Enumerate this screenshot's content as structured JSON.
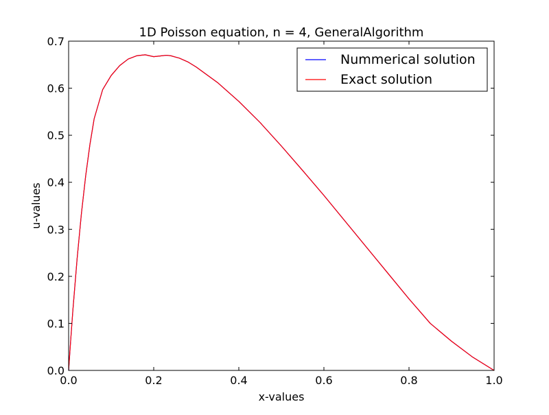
{
  "chart_data": {
    "type": "line",
    "title": "1D Poisson equation, n = 4, GeneralAlgorithm",
    "xlabel": "x-values",
    "ylabel": "u-values",
    "xlim": [
      0.0,
      1.0
    ],
    "ylim": [
      0.0,
      0.7
    ],
    "x_ticks": [
      "0.0",
      "0.2",
      "0.4",
      "0.6",
      "0.8",
      "1.0"
    ],
    "y_ticks": [
      "0.0",
      "0.1",
      "0.2",
      "0.3",
      "0.4",
      "0.5",
      "0.6",
      "0.7"
    ],
    "grid": false,
    "legend_position": "top-right",
    "series": [
      {
        "name": "Nummerical solution",
        "color": "#0000ff",
        "x": [
          0,
          0.005,
          0.01,
          0.02,
          0.03,
          0.04,
          0.05,
          0.06,
          0.08,
          0.1,
          0.12,
          0.14,
          0.16,
          0.18,
          0.2,
          0.22,
          0.23,
          0.24,
          0.26,
          0.28,
          0.3,
          0.35,
          0.4,
          0.45,
          0.5,
          0.55,
          0.6,
          0.65,
          0.7,
          0.75,
          0.8,
          0.85,
          0.9,
          0.95,
          1.0
        ],
        "y": [
          0,
          0.066,
          0.128,
          0.238,
          0.333,
          0.413,
          0.48,
          0.535,
          0.597,
          0.627,
          0.648,
          0.662,
          0.669,
          0.671,
          0.667,
          0.669,
          0.67,
          0.669,
          0.664,
          0.656,
          0.645,
          0.612,
          0.572,
          0.527,
          0.477,
          0.425,
          0.372,
          0.317,
          0.262,
          0.207,
          0.152,
          0.1,
          0.062,
          0.028,
          0.0
        ]
      },
      {
        "name": "Exact solution",
        "color": "#ff0000",
        "x": [
          0,
          0.005,
          0.01,
          0.02,
          0.03,
          0.04,
          0.05,
          0.06,
          0.08,
          0.1,
          0.12,
          0.14,
          0.16,
          0.18,
          0.2,
          0.22,
          0.23,
          0.24,
          0.26,
          0.28,
          0.3,
          0.35,
          0.4,
          0.45,
          0.5,
          0.55,
          0.6,
          0.65,
          0.7,
          0.75,
          0.8,
          0.85,
          0.9,
          0.95,
          1.0
        ],
        "y": [
          0,
          0.066,
          0.128,
          0.238,
          0.333,
          0.413,
          0.48,
          0.535,
          0.597,
          0.627,
          0.648,
          0.662,
          0.669,
          0.671,
          0.667,
          0.669,
          0.67,
          0.669,
          0.664,
          0.656,
          0.645,
          0.612,
          0.572,
          0.527,
          0.477,
          0.425,
          0.372,
          0.317,
          0.262,
          0.207,
          0.152,
          0.1,
          0.062,
          0.028,
          0.0
        ]
      }
    ]
  }
}
